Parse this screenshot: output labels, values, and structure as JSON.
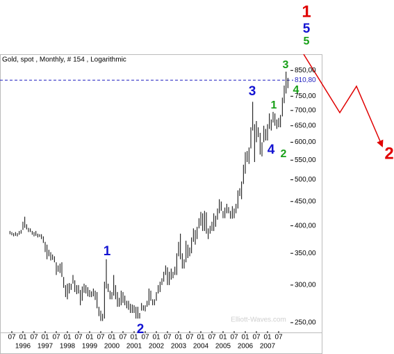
{
  "chart_data": {
    "type": "ohlc",
    "title": "Gold, spot , Monthly, # 154 , Logarithmic",
    "watermark": "Elliott-Waves.com",
    "log_scale": true,
    "bar_color": "#000000",
    "ylim": [
      240,
      880
    ],
    "yticks": [
      {
        "value": 250,
        "label": "250,00"
      },
      {
        "value": 300,
        "label": "300,00"
      },
      {
        "value": 350,
        "label": "350,00"
      },
      {
        "value": 400,
        "label": "400,00"
      },
      {
        "value": 450,
        "label": "450,00"
      },
      {
        "value": 500,
        "label": "500,00"
      },
      {
        "value": 550,
        "label": "550,00"
      },
      {
        "value": 600,
        "label": "600,00"
      },
      {
        "value": 650,
        "label": "650,00"
      },
      {
        "value": 700,
        "label": "700,00"
      },
      {
        "value": 750,
        "label": "750,00"
      },
      {
        "value": 850,
        "label": "850,00"
      }
    ],
    "last_price": {
      "value": 810.8,
      "label": "810,80",
      "color": "#1f1fbf"
    },
    "xticks": [
      {
        "value": "1995-07",
        "label": "07"
      },
      {
        "value": "1996-01",
        "label": "01"
      },
      {
        "value": "1996-07",
        "label": "07"
      },
      {
        "value": "1997-01",
        "label": "01"
      },
      {
        "value": "1997-07",
        "label": "07"
      },
      {
        "value": "1998-01",
        "label": "01"
      },
      {
        "value": "1998-07",
        "label": "07"
      },
      {
        "value": "1999-01",
        "label": "01"
      },
      {
        "value": "1999-07",
        "label": "07"
      },
      {
        "value": "2000-01",
        "label": "01"
      },
      {
        "value": "2000-07",
        "label": "07"
      },
      {
        "value": "2001-01",
        "label": "01"
      },
      {
        "value": "2001-07",
        "label": "07"
      },
      {
        "value": "2002-01",
        "label": "01"
      },
      {
        "value": "2002-07",
        "label": "07"
      },
      {
        "value": "2003-01",
        "label": "01"
      },
      {
        "value": "2003-07",
        "label": "07"
      },
      {
        "value": "2004-01",
        "label": "01"
      },
      {
        "value": "2004-07",
        "label": "07"
      },
      {
        "value": "2005-01",
        "label": "01"
      },
      {
        "value": "2005-07",
        "label": "07"
      },
      {
        "value": "2006-01",
        "label": "01"
      },
      {
        "value": "2006-07",
        "label": "07"
      },
      {
        "value": "2007-01",
        "label": "01"
      },
      {
        "value": "2007-07",
        "label": "07"
      }
    ],
    "year_ticks": [
      {
        "value": "1996-01",
        "label": "1996"
      },
      {
        "value": "1997-01",
        "label": "1997"
      },
      {
        "value": "1998-01",
        "label": "1998"
      },
      {
        "value": "1999-01",
        "label": "1999"
      },
      {
        "value": "2000-01",
        "label": "2000"
      },
      {
        "value": "2001-01",
        "label": "2001"
      },
      {
        "value": "2002-01",
        "label": "2002"
      },
      {
        "value": "2003-01",
        "label": "2003"
      },
      {
        "value": "2004-01",
        "label": "2004"
      },
      {
        "value": "2005-01",
        "label": "2005"
      },
      {
        "value": "2006-01",
        "label": "2006"
      },
      {
        "value": "2007-01",
        "label": "2007"
      }
    ],
    "start_year": 1995,
    "start_month": 6,
    "high": [
      390,
      388,
      386,
      388,
      386,
      390,
      392,
      408,
      418,
      403,
      396,
      395,
      390,
      388,
      390,
      385,
      384,
      384,
      380,
      370,
      365,
      356,
      352,
      348,
      345,
      335,
      330,
      333,
      335,
      312,
      300,
      302,
      303,
      302,
      315,
      307,
      300,
      300,
      293,
      298,
      302,
      300,
      297,
      293,
      291,
      295,
      292,
      290,
      270,
      265,
      261,
      305,
      340,
      302,
      292,
      290,
      315,
      300,
      290,
      282,
      292,
      290,
      285,
      278,
      278,
      274,
      273,
      272,
      270,
      270,
      262,
      275,
      272,
      272,
      278,
      295,
      292,
      280,
      280,
      290,
      300,
      305,
      310,
      320,
      330,
      327,
      320,
      325,
      320,
      328,
      350,
      370,
      385,
      350,
      340,
      372,
      365,
      360,
      378,
      395,
      392,
      398,
      415,
      428,
      425,
      430,
      427,
      395,
      400,
      408,
      425,
      420,
      435,
      455,
      450,
      430,
      437,
      445,
      438,
      430,
      440,
      435,
      445,
      475,
      480,
      496,
      538,
      572,
      575,
      585,
      645,
      730,
      655,
      665,
      645,
      628,
      600,
      650,
      640,
      655,
      690,
      670,
      695,
      690,
      670,
      675,
      685,
      745,
      790,
      845,
      820
    ],
    "low": [
      384,
      382,
      380,
      381,
      380,
      383,
      385,
      392,
      396,
      393,
      388,
      388,
      383,
      380,
      381,
      378,
      379,
      375,
      368,
      352,
      340,
      345,
      338,
      339,
      335,
      315,
      320,
      318,
      312,
      296,
      283,
      280,
      288,
      293,
      302,
      290,
      287,
      288,
      272,
      278,
      289,
      288,
      284,
      283,
      283,
      284,
      279,
      268,
      258,
      252,
      252,
      255,
      295,
      290,
      280,
      280,
      285,
      280,
      270,
      270,
      272,
      275,
      272,
      268,
      266,
      262,
      262,
      262,
      255,
      255,
      255,
      265,
      265,
      264,
      270,
      272,
      278,
      272,
      272,
      278,
      288,
      290,
      300,
      305,
      315,
      300,
      300,
      308,
      310,
      315,
      315,
      345,
      340,
      325,
      325,
      335,
      342,
      345,
      350,
      370,
      365,
      375,
      395,
      400,
      390,
      390,
      385,
      375,
      385,
      390,
      390,
      398,
      412,
      425,
      430,
      415,
      415,
      425,
      425,
      414,
      414,
      415,
      425,
      435,
      462,
      455,
      490,
      515,
      545,
      540,
      582,
      635,
      545,
      600,
      615,
      565,
      560,
      600,
      605,
      605,
      640,
      635,
      660,
      650,
      640,
      645,
      645,
      680,
      725,
      760,
      780
    ],
    "annotations": [
      {
        "text": "1",
        "color": "#e00000"
      },
      {
        "text": "5",
        "color": "#1414d2"
      },
      {
        "text": "5",
        "color": "#18a018"
      },
      {
        "text": "3",
        "color": "#18a018"
      },
      {
        "text": "4",
        "color": "#18a018"
      },
      {
        "text": "3",
        "color": "#1414d2"
      },
      {
        "text": "1",
        "color": "#18a018"
      },
      {
        "text": "4",
        "color": "#1414d2"
      },
      {
        "text": "2",
        "color": "#18a018"
      },
      {
        "text": "2",
        "color": "#e00000"
      },
      {
        "text": "1",
        "color": "#1414d2"
      },
      {
        "text": "2",
        "color": "#1414d2"
      }
    ]
  }
}
